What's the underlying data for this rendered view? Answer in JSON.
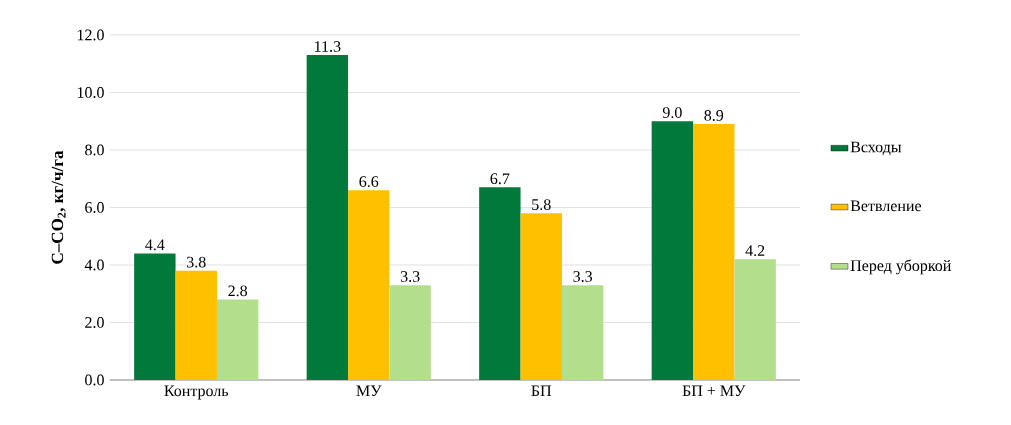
{
  "chart_data": {
    "type": "bar",
    "ylabel": "C–CO$_{2}$, кг/ч/га",
    "categories": [
      "Контроль",
      "МУ",
      "БП",
      "БП + МУ"
    ],
    "series": [
      {
        "name": "Всходы",
        "color": "#00793a",
        "values": [
          4.4,
          11.3,
          6.7,
          9.0
        ],
        "value_labels": [
          "4.4",
          "11.3",
          "6.7",
          "9.0"
        ]
      },
      {
        "name": "Ветвление",
        "color": "#ffc000",
        "values": [
          3.8,
          6.6,
          5.8,
          8.9
        ],
        "value_labels": [
          "3.8",
          "6.6",
          "5.8",
          "8.9"
        ]
      },
      {
        "name": "Перед уборкой",
        "color": "#b3de8b",
        "values": [
          2.8,
          3.3,
          3.3,
          4.2
        ],
        "value_labels": [
          "2.8",
          "3.3",
          "3.3",
          "4.2"
        ]
      }
    ],
    "ylim": [
      0,
      12
    ],
    "yticks": [
      {
        "value": 0,
        "label": "0.0"
      },
      {
        "value": 2,
        "label": "2.0"
      },
      {
        "value": 4,
        "label": "4.0"
      },
      {
        "value": 6,
        "label": "6.0"
      },
      {
        "value": 8,
        "label": "8.0"
      },
      {
        "value": 10,
        "label": "10.0"
      },
      {
        "value": 12,
        "label": "12.0"
      }
    ],
    "grid": "y",
    "legend": "right"
  }
}
